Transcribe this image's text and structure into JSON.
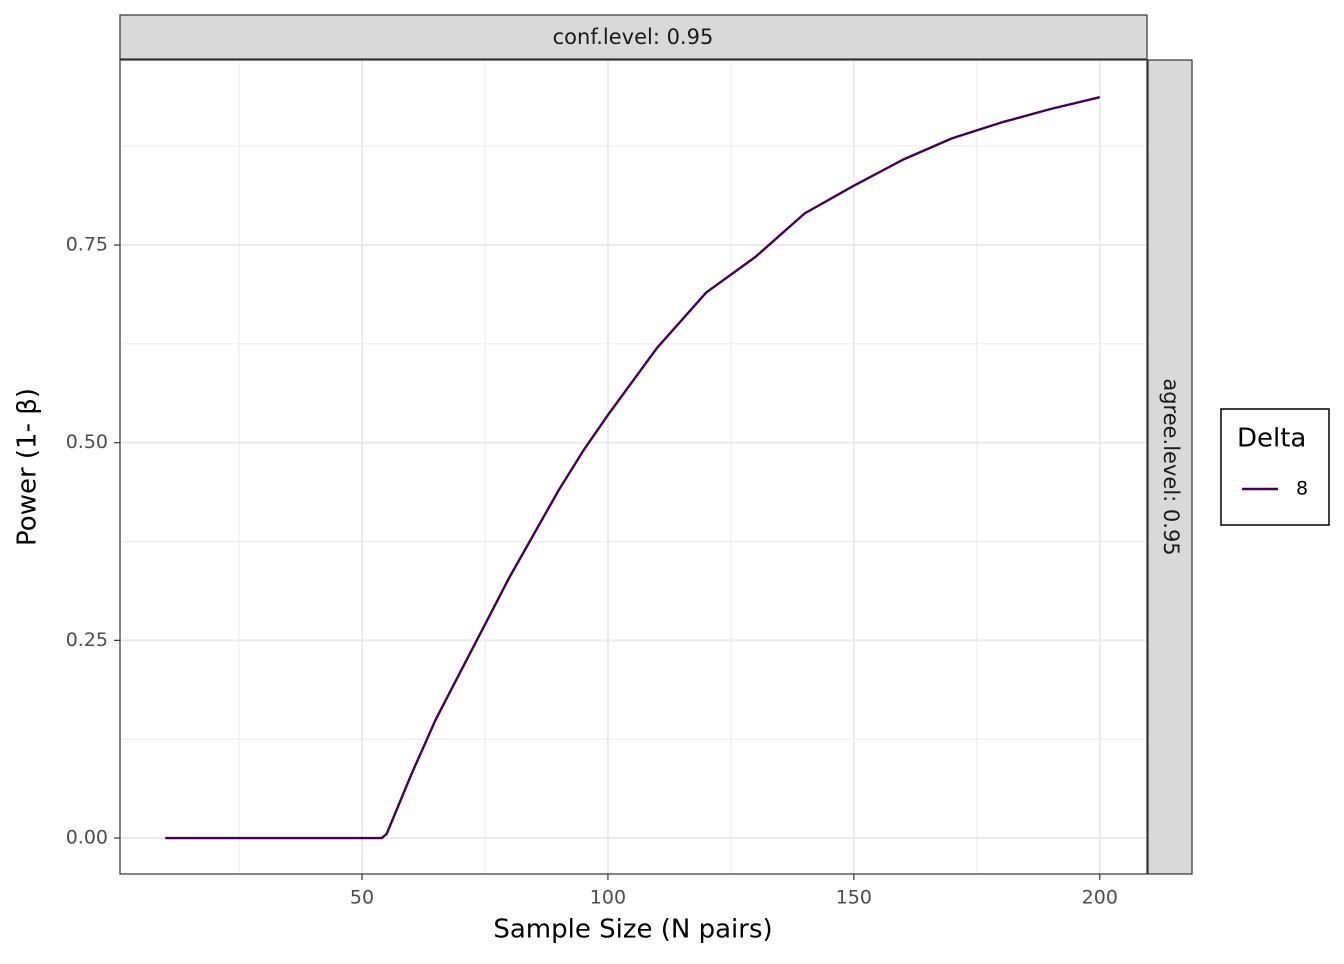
{
  "chart_data": {
    "type": "line",
    "x_label": "Sample Size (N pairs)",
    "y_label": "Power (1- β)",
    "facet_top": "conf.level: 0.95",
    "facet_right": "agree.level: 0.95",
    "legend_title": "Delta",
    "grid": true,
    "x": [
      10,
      54,
      55,
      60,
      65,
      70,
      75,
      80,
      85,
      90,
      95,
      100,
      110,
      120,
      130,
      140,
      150,
      160,
      170,
      180,
      190,
      200
    ],
    "series": [
      {
        "name": "8",
        "color": "#440154",
        "values": [
          0,
          0,
          0.005,
          0.08,
          0.15,
          0.21,
          0.27,
          0.33,
          0.385,
          0.44,
          0.49,
          0.535,
          0.62,
          0.69,
          0.735,
          0.79,
          0.825,
          0.858,
          0.885,
          0.905,
          0.922,
          0.937
        ]
      }
    ],
    "xlim": [
      0.8,
      209.6
    ],
    "ylim": [
      -0.0455,
      0.984
    ],
    "xticks": [
      50,
      100,
      150,
      200
    ],
    "yticks": [
      {
        "value": 0,
        "label": "0.00"
      },
      {
        "value": 0.25,
        "label": "0.25"
      },
      {
        "value": 0.5,
        "label": "0.50"
      },
      {
        "value": 0.75,
        "label": "0.75"
      }
    ],
    "xminor": [
      25,
      75,
      125,
      175
    ],
    "yminor": [
      0.125,
      0.375,
      0.625,
      0.875
    ]
  }
}
